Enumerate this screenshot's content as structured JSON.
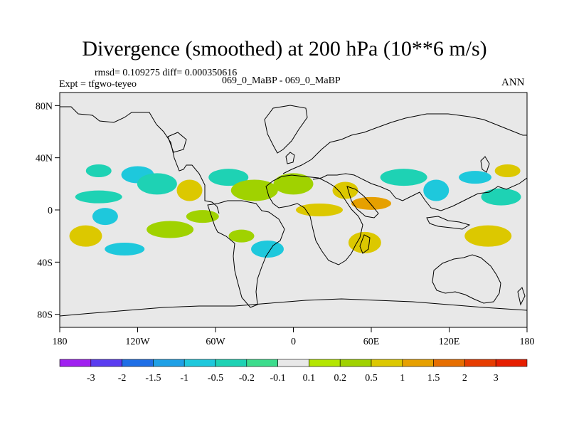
{
  "title": "Divergence (smoothed) at 200 hPa (10**6 m/s)",
  "stats_line": "rmsd= 0.109275 diff= 0.000350616",
  "expt_line": "Expt = tfgwo-teyeo",
  "cases_line": "069_0_MaBP - 069_0_MaBP",
  "season": "ANN",
  "chart_data": {
    "type": "contour-map",
    "title": "Divergence (smoothed) at 200 hPa (10**6 m/s)",
    "projection": "cylindrical-equidistant",
    "x_ticks": [
      "180",
      "120W",
      "60W",
      "0",
      "60E",
      "120E",
      "180"
    ],
    "y_ticks": [
      "80N",
      "40N",
      "0",
      "40S",
      "80S"
    ],
    "lon_range": [
      -180,
      180
    ],
    "lat_range": [
      -90,
      90
    ],
    "colorbar": {
      "labels": [
        "-3",
        "-2",
        "-1.5",
        "-1",
        "-0.5",
        "-0.2",
        "-0.1",
        "0.1",
        "0.2",
        "0.5",
        "1",
        "1.5",
        "2",
        "3"
      ],
      "colors": [
        "#a020f0",
        "#5a3cf0",
        "#1e6ee6",
        "#1ea0e6",
        "#1ec8dc",
        "#1ed2b4",
        "#3cdc8c",
        "#e8e8e8",
        "#b4e600",
        "#a0d200",
        "#dcc800",
        "#e6a000",
        "#e66e00",
        "#e63c00",
        "#e61e00"
      ]
    },
    "fields": [
      {
        "lon": -150,
        "lat": 30,
        "level": "-0.2"
      },
      {
        "lon": -120,
        "lat": 27,
        "level": "-0.5"
      },
      {
        "lon": -105,
        "lat": 20,
        "level": "-0.2"
      },
      {
        "lon": -150,
        "lat": 10,
        "level": "-0.2"
      },
      {
        "lon": -145,
        "lat": -5,
        "level": "-0.5"
      },
      {
        "lon": -160,
        "lat": -20,
        "level": "0.5"
      },
      {
        "lon": -130,
        "lat": -30,
        "level": "-0.5"
      },
      {
        "lon": -95,
        "lat": -15,
        "level": "0.2"
      },
      {
        "lon": -80,
        "lat": 15,
        "level": "0.5"
      },
      {
        "lon": -70,
        "lat": -5,
        "level": "0.2"
      },
      {
        "lon": -50,
        "lat": 25,
        "level": "-0.2"
      },
      {
        "lon": -30,
        "lat": 15,
        "level": "0.2"
      },
      {
        "lon": -40,
        "lat": -20,
        "level": "0.2"
      },
      {
        "lon": -20,
        "lat": -30,
        "level": "-0.5"
      },
      {
        "lon": 0,
        "lat": 20,
        "level": "0.2"
      },
      {
        "lon": 20,
        "lat": 0,
        "level": "0.5"
      },
      {
        "lon": 40,
        "lat": 15,
        "level": "0.5"
      },
      {
        "lon": 55,
        "lat": -25,
        "level": "0.5"
      },
      {
        "lon": 60,
        "lat": 5,
        "level": "1"
      },
      {
        "lon": 85,
        "lat": 25,
        "level": "-0.2"
      },
      {
        "lon": 110,
        "lat": 15,
        "level": "-0.5"
      },
      {
        "lon": 140,
        "lat": 25,
        "level": "-0.5"
      },
      {
        "lon": 160,
        "lat": 10,
        "level": "-0.2"
      },
      {
        "lon": 150,
        "lat": -20,
        "level": "0.5"
      },
      {
        "lon": 165,
        "lat": 30,
        "level": "0.5"
      }
    ]
  }
}
